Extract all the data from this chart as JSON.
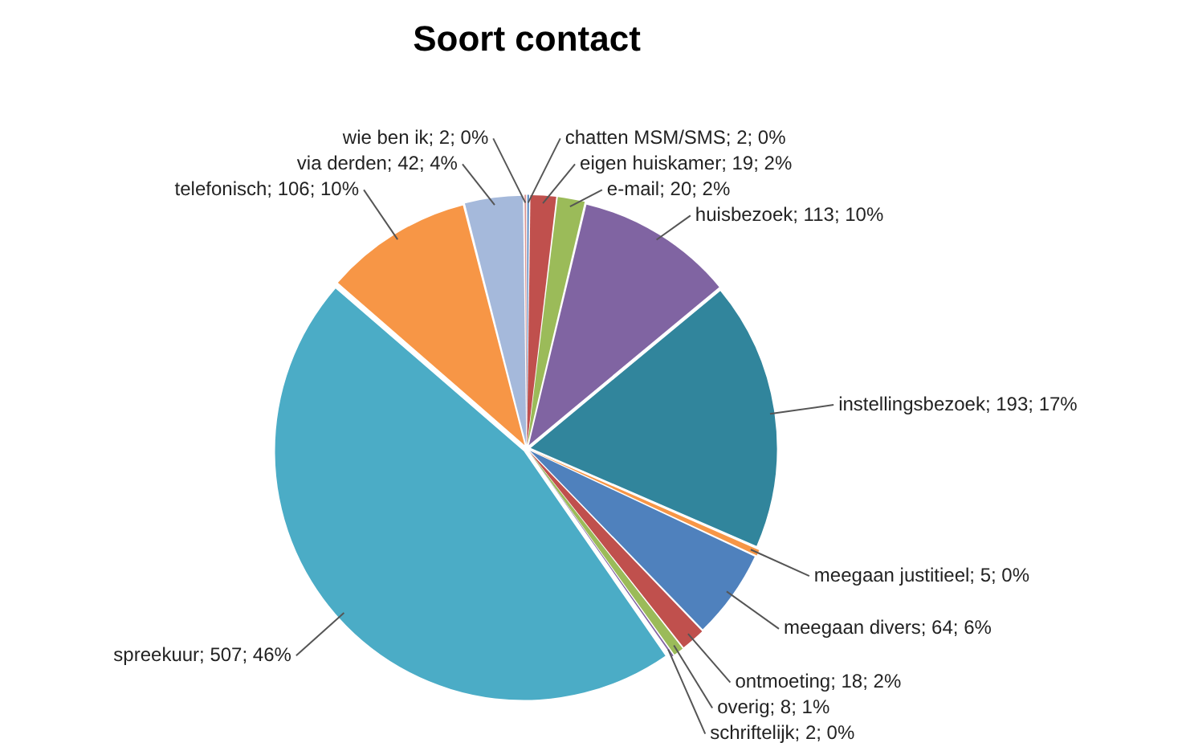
{
  "chart_data": {
    "type": "pie",
    "title": "Soort contact",
    "categories": [
      "chatten MSM/SMS",
      "eigen huiskamer",
      "e-mail",
      "huisbezoek",
      "instellingsbezoek",
      "meegaan justitieel",
      "meegaan divers",
      "ontmoeting",
      "overig",
      "schriftelijk",
      "spreekuur",
      "telefonisch",
      "via derden",
      "wie ben ik"
    ],
    "values": [
      2,
      19,
      20,
      113,
      193,
      5,
      64,
      18,
      8,
      2,
      507,
      106,
      42,
      2
    ],
    "value_labels": [
      "2; 0%",
      "19; 2%",
      "20; 2%",
      "113; 10%",
      "193; 17%",
      "5; 0%",
      "64; 6%",
      "18; 2%",
      "8; 1%",
      "2; 0%",
      "507; 46%",
      "106; 10%",
      "42; 4%",
      "2; 0%"
    ],
    "colors": [
      "#4f81bd",
      "#c0504d",
      "#9bbb59",
      "#8064a2",
      "#31859c",
      "#f79646",
      "#4f81bd",
      "#c0504d",
      "#9bbb59",
      "#8064a2",
      "#4bacc6",
      "#f79646",
      "#a5b9db",
      "#d99694"
    ],
    "legend": false
  }
}
